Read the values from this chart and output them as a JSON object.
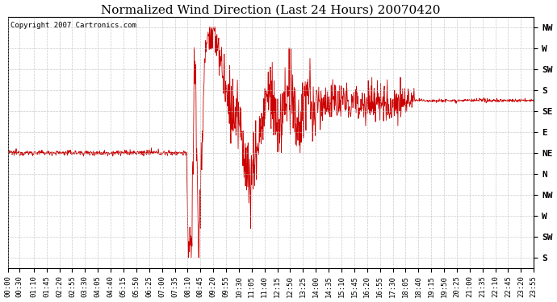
{
  "title": "Normalized Wind Direction (Last 24 Hours) 20070420",
  "copyright": "Copyright 2007 Cartronics.com",
  "line_color": "#cc0000",
  "bg_color": "#ffffff",
  "grid_color": "#bbbbbb",
  "ytick_labels_bottom_top": [
    "S",
    "SW",
    "W",
    "NW",
    "N",
    "NE",
    "E",
    "SE",
    "S",
    "SW",
    "W",
    "NW"
  ],
  "xtick_labels": [
    "00:00",
    "00:30",
    "01:10",
    "01:45",
    "02:20",
    "02:55",
    "03:30",
    "04:05",
    "04:40",
    "05:15",
    "05:50",
    "06:25",
    "07:00",
    "07:35",
    "08:10",
    "08:45",
    "09:20",
    "09:55",
    "10:30",
    "11:05",
    "11:40",
    "12:15",
    "12:50",
    "13:25",
    "14:00",
    "14:35",
    "15:10",
    "15:45",
    "16:20",
    "16:55",
    "17:30",
    "18:05",
    "18:40",
    "19:15",
    "19:50",
    "20:25",
    "21:00",
    "21:35",
    "22:10",
    "22:45",
    "23:20",
    "23:55"
  ],
  "ylim": [
    -0.5,
    11.5
  ],
  "xlim_minutes": [
    0,
    1435
  ],
  "title_fontsize": 11,
  "tick_fontsize": 6.5,
  "ytick_fontsize": 8
}
